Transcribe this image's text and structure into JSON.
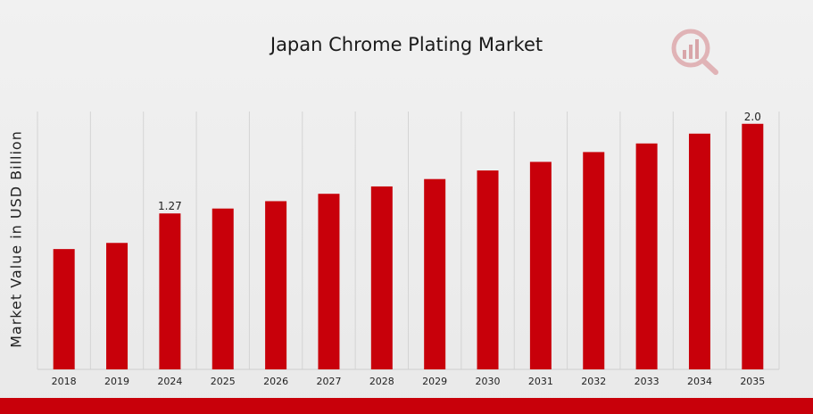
{
  "chart_data": {
    "type": "bar",
    "title": "Japan Chrome Plating Market",
    "ylabel": "Market Value in USD Billion",
    "xlabel": "",
    "categories": [
      "2018",
      "2019",
      "2024",
      "2025",
      "2026",
      "2027",
      "2028",
      "2029",
      "2030",
      "2031",
      "2032",
      "2033",
      "2034",
      "2035"
    ],
    "values": [
      0.98,
      1.03,
      1.27,
      1.31,
      1.37,
      1.43,
      1.49,
      1.55,
      1.62,
      1.69,
      1.77,
      1.84,
      1.92,
      2.0
    ],
    "data_labels": [
      {
        "category": "2024",
        "text": "1.27"
      },
      {
        "category": "2035",
        "text": "2.0"
      }
    ],
    "ylim": [
      0,
      2.1
    ],
    "grid": "vertical",
    "bar_color": "#c8000a"
  },
  "colors": {
    "accent": "#c8000a",
    "logo": "#d9a0a4"
  },
  "logo_icon": "magnifier-chart-logo-icon"
}
